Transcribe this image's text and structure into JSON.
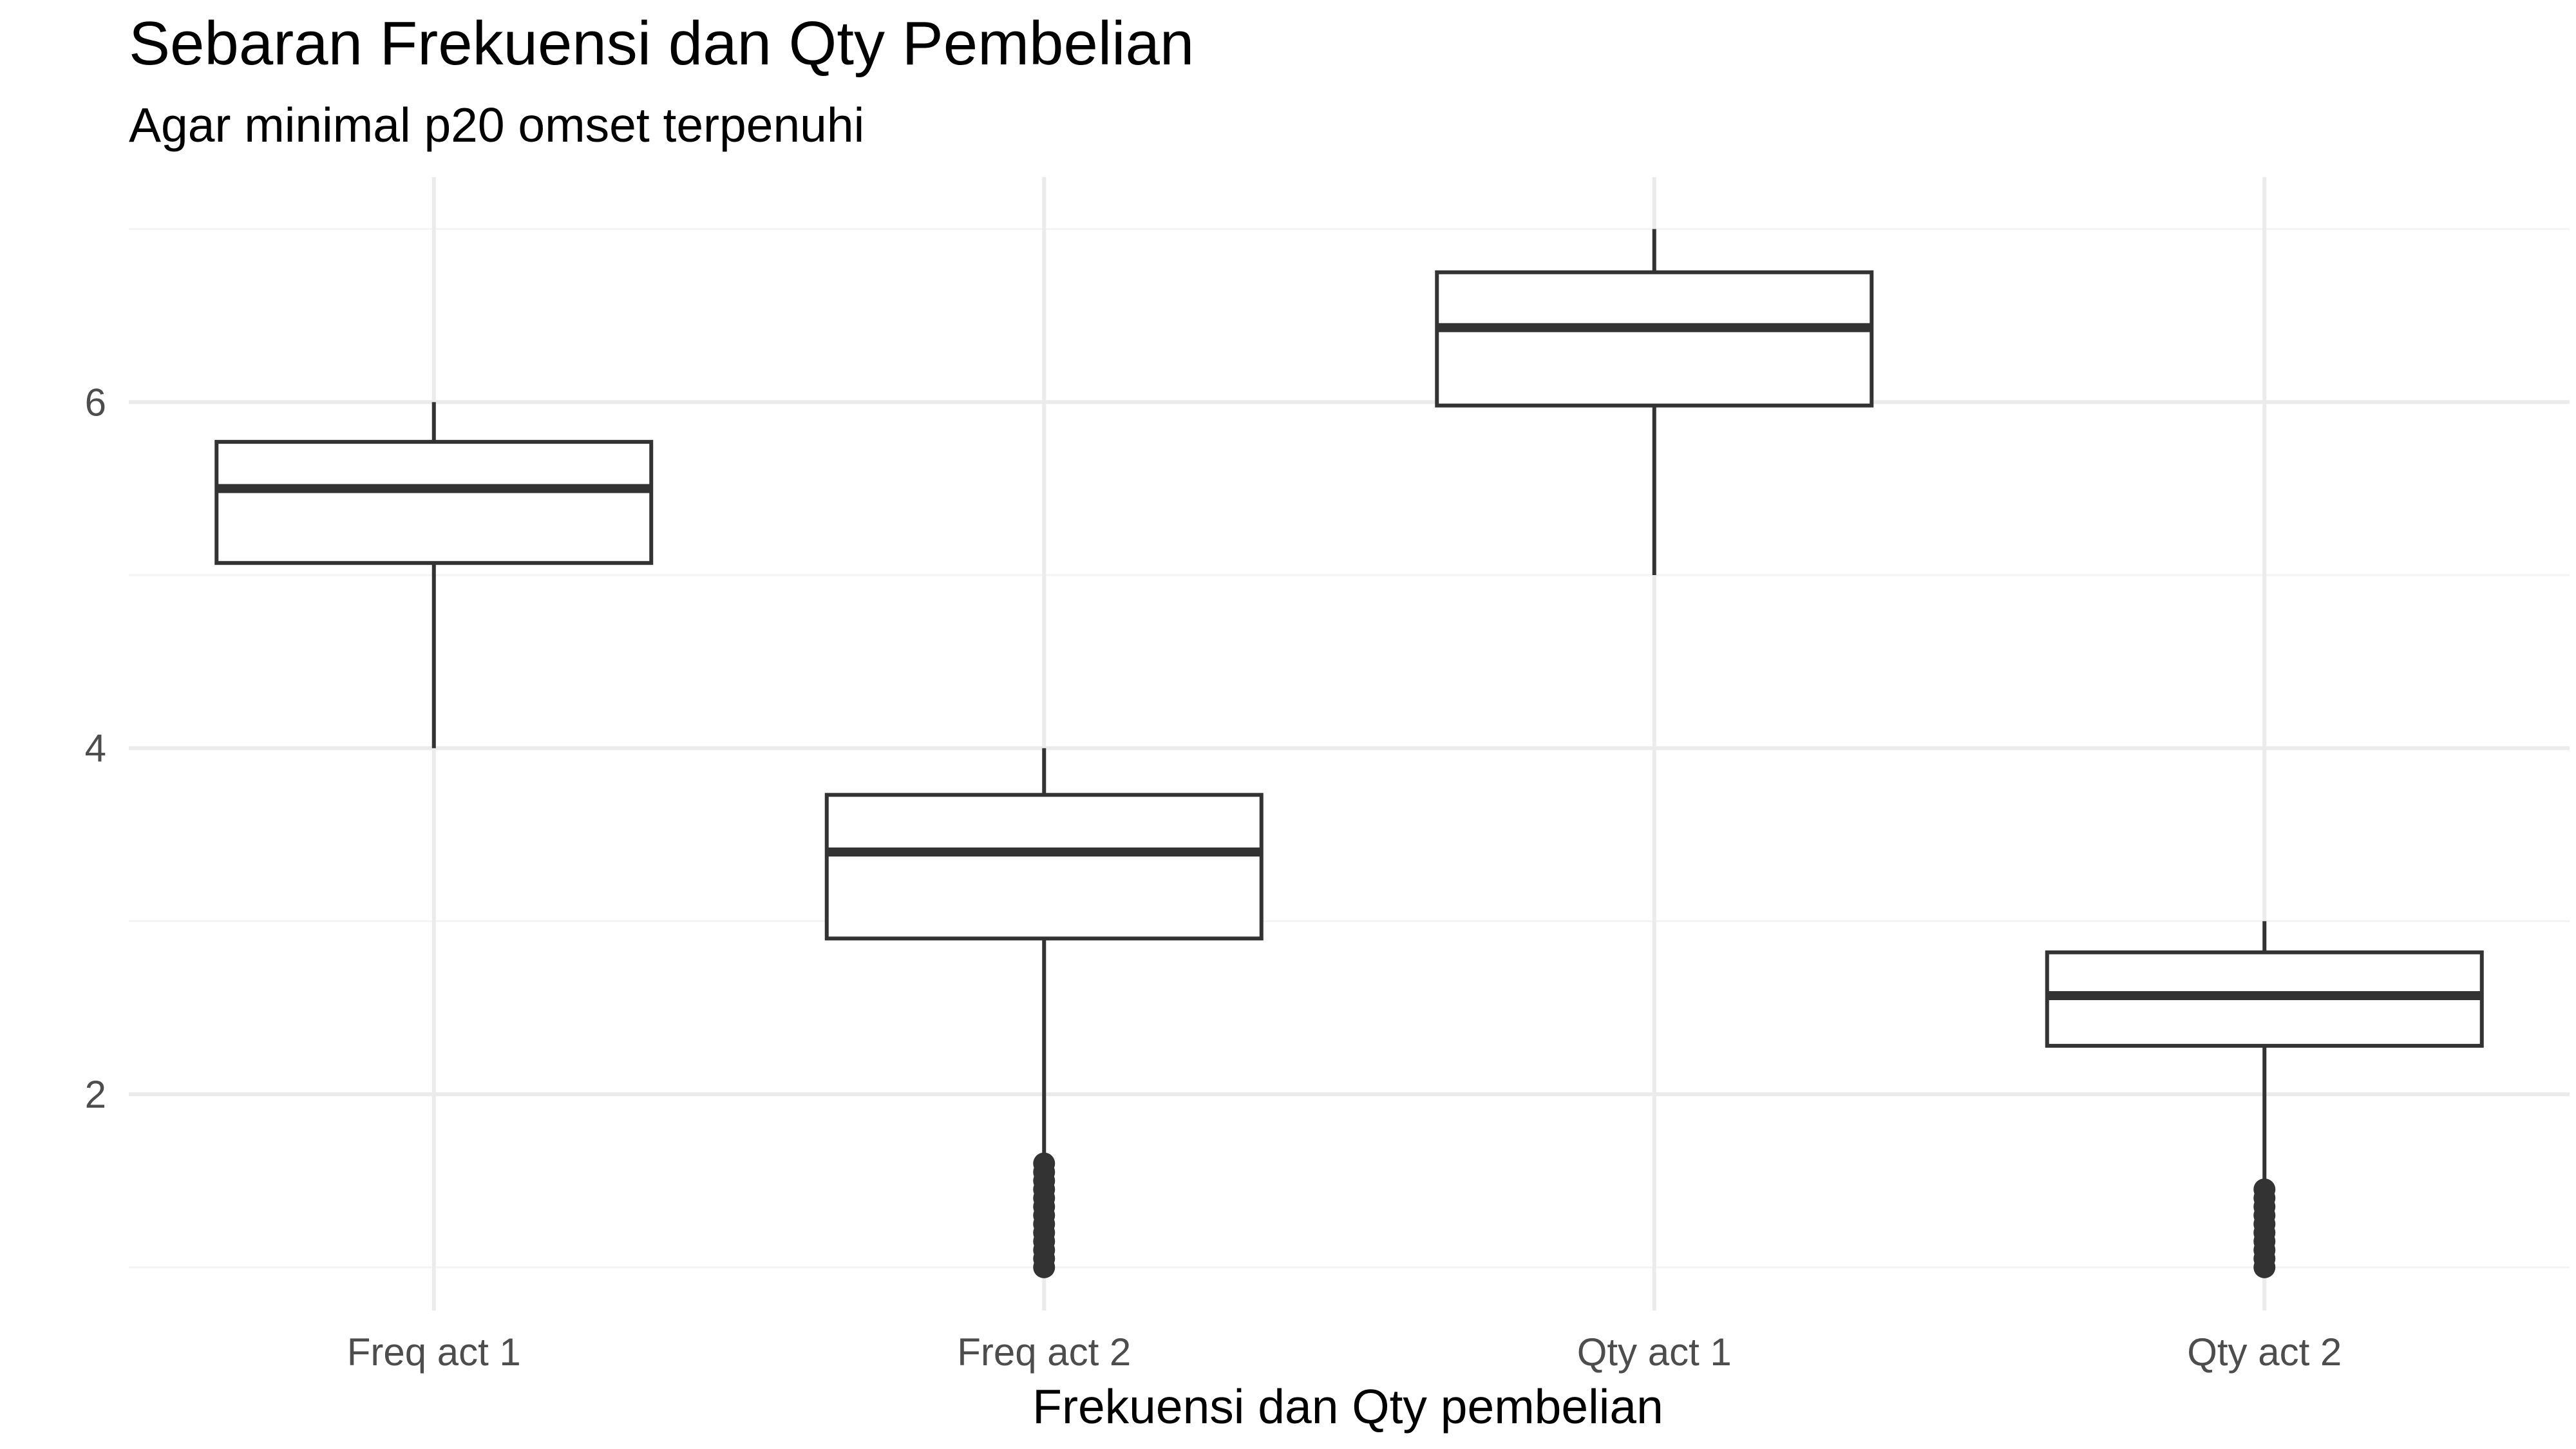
{
  "chart_data": {
    "type": "boxplot",
    "title": "Sebaran Frekuensi dan Qty Pembelian",
    "subtitle": "Agar minimal p20 omset terpenuhi",
    "xlabel": "Frekuensi dan Qty pembelian",
    "ylabel": "",
    "ylim": [
      0.75,
      7.3
    ],
    "yticks": [
      2,
      4,
      6
    ],
    "minor_yticks": [
      1,
      3,
      5,
      7
    ],
    "grid": true,
    "legend": "none",
    "categories": [
      "Freq act 1",
      "Freq act 2",
      "Qty act 1",
      "Qty act 2"
    ],
    "boxes": [
      {
        "category": "Freq act 1",
        "whisker_low": 4.0,
        "q1": 5.07,
        "median": 5.5,
        "q3": 5.77,
        "whisker_high": 6.0,
        "outliers": []
      },
      {
        "category": "Freq act 2",
        "whisker_low": 1.62,
        "q1": 2.9,
        "median": 3.4,
        "q3": 3.73,
        "whisker_high": 4.0,
        "outliers": [
          1.0,
          1.05,
          1.1,
          1.15,
          1.2,
          1.25,
          1.3,
          1.35,
          1.4,
          1.45,
          1.5,
          1.55,
          1.6
        ]
      },
      {
        "category": "Qty act 1",
        "whisker_low": 5.0,
        "q1": 5.98,
        "median": 6.43,
        "q3": 6.75,
        "whisker_high": 7.0,
        "outliers": []
      },
      {
        "category": "Qty act 2",
        "whisker_low": 1.5,
        "q1": 2.28,
        "median": 2.57,
        "q3": 2.82,
        "whisker_high": 3.0,
        "outliers": [
          1.0,
          1.05,
          1.1,
          1.15,
          1.2,
          1.25,
          1.3,
          1.35,
          1.4,
          1.45
        ]
      }
    ],
    "colors": {
      "box_stroke": "#333333",
      "box_fill": "#ffffff",
      "grid_major": "#ebebeb",
      "grid_minor": "#f4f4f4",
      "tick_text": "#4d4d4d",
      "title_text": "#000000"
    }
  }
}
